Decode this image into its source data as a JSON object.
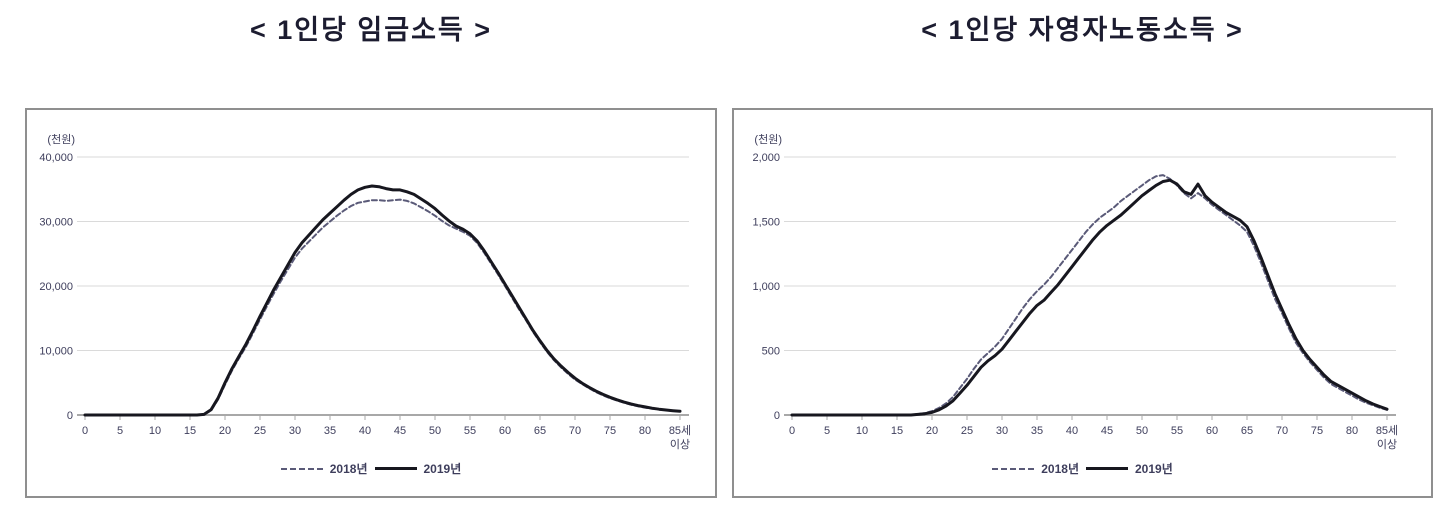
{
  "chart_data": [
    {
      "type": "line",
      "title": "< 1인당 임금소득 >",
      "unit_label": "(천원)",
      "x_tick_labels": [
        "0",
        "5",
        "10",
        "15",
        "20",
        "25",
        "30",
        "35",
        "40",
        "45",
        "50",
        "55",
        "60",
        "65",
        "70",
        "75",
        "80",
        "85세"
      ],
      "x_tick_label_second_line": "이상",
      "x_tick_positions": [
        0,
        5,
        10,
        15,
        20,
        25,
        30,
        35,
        40,
        45,
        50,
        55,
        60,
        65,
        70,
        75,
        80,
        85
      ],
      "x_unit": "age in years, 1-year steps, last point = 85+",
      "ylim": [
        0,
        40000
      ],
      "yticks": [
        0,
        10000,
        20000,
        30000,
        40000
      ],
      "ytick_labels": [
        "0",
        "10,000",
        "20,000",
        "30,000",
        "40,000"
      ],
      "grid": "horizontal",
      "legend_position": "bottom-center",
      "series": [
        {
          "name": "2018년",
          "style": "dashed",
          "color": "#5a5a78",
          "values": [
            0,
            0,
            0,
            0,
            0,
            0,
            0,
            0,
            0,
            0,
            0,
            0,
            0,
            0,
            0,
            0,
            0,
            100,
            700,
            2400,
            4700,
            6900,
            8800,
            10600,
            12700,
            14800,
            16900,
            18900,
            20800,
            22600,
            24400,
            25800,
            26900,
            28000,
            29100,
            30000,
            30900,
            31700,
            32400,
            32900,
            33100,
            33300,
            33300,
            33200,
            33300,
            33400,
            33200,
            32800,
            32200,
            31600,
            30900,
            30100,
            29400,
            28900,
            28400,
            27800,
            26700,
            25200,
            23500,
            21800,
            20000,
            18200,
            16400,
            14700,
            12900,
            11300,
            9800,
            8500,
            7400,
            6400,
            5500,
            4800,
            4150,
            3550,
            3050,
            2600,
            2250,
            1900,
            1600,
            1350,
            1150,
            980,
            850,
            730,
            630,
            550
          ]
        },
        {
          "name": "2019년",
          "style": "solid",
          "color": "#17171f",
          "values": [
            0,
            0,
            0,
            0,
            0,
            0,
            0,
            0,
            0,
            0,
            0,
            0,
            0,
            0,
            0,
            0,
            0,
            100,
            800,
            2600,
            5000,
            7200,
            9100,
            11000,
            13100,
            15300,
            17400,
            19500,
            21400,
            23300,
            25200,
            26700,
            27900,
            29100,
            30300,
            31300,
            32300,
            33300,
            34200,
            34900,
            35300,
            35500,
            35400,
            35100,
            34900,
            34900,
            34600,
            34200,
            33500,
            32800,
            32000,
            31000,
            30100,
            29300,
            28800,
            28100,
            27000,
            25500,
            23800,
            22100,
            20300,
            18500,
            16700,
            14900,
            13100,
            11500,
            10000,
            8700,
            7600,
            6600,
            5700,
            4950,
            4300,
            3700,
            3200,
            2750,
            2350,
            2000,
            1700,
            1450,
            1250,
            1050,
            900,
            780,
            670,
            580
          ]
        }
      ]
    },
    {
      "type": "line",
      "title": "< 1인당 자영자노동소득 >",
      "unit_label": "(천원)",
      "x_tick_labels": [
        "0",
        "5",
        "10",
        "15",
        "20",
        "25",
        "30",
        "35",
        "40",
        "45",
        "50",
        "55",
        "60",
        "65",
        "70",
        "75",
        "80",
        "85세"
      ],
      "x_tick_label_second_line": "이상",
      "x_tick_positions": [
        0,
        5,
        10,
        15,
        20,
        25,
        30,
        35,
        40,
        45,
        50,
        55,
        60,
        65,
        70,
        75,
        80,
        85
      ],
      "x_unit": "age in years, 1-year steps, last point = 85+",
      "ylim": [
        0,
        2000
      ],
      "yticks": [
        0,
        500,
        1000,
        1500,
        2000
      ],
      "ytick_labels": [
        "0",
        "500",
        "1,000",
        "1,500",
        "2,000"
      ],
      "grid": "horizontal",
      "legend_position": "bottom-center",
      "series": [
        {
          "name": "2018년",
          "style": "dashed",
          "color": "#5a5a78",
          "values": [
            0,
            0,
            0,
            0,
            0,
            0,
            0,
            0,
            0,
            0,
            0,
            0,
            0,
            0,
            0,
            0,
            0,
            0,
            8,
            15,
            30,
            55,
            90,
            140,
            210,
            280,
            360,
            430,
            480,
            530,
            590,
            670,
            750,
            830,
            900,
            960,
            1010,
            1070,
            1140,
            1210,
            1280,
            1350,
            1420,
            1480,
            1530,
            1570,
            1610,
            1660,
            1700,
            1740,
            1780,
            1820,
            1850,
            1860,
            1830,
            1780,
            1720,
            1680,
            1720,
            1680,
            1630,
            1590,
            1550,
            1510,
            1470,
            1420,
            1310,
            1180,
            1040,
            900,
            790,
            670,
            560,
            480,
            410,
            350,
            290,
            240,
            210,
            180,
            150,
            120,
            95,
            75,
            55,
            40
          ]
        },
        {
          "name": "2019년",
          "style": "solid",
          "color": "#17171f",
          "values": [
            0,
            0,
            0,
            0,
            0,
            0,
            0,
            0,
            0,
            0,
            0,
            0,
            0,
            0,
            0,
            0,
            0,
            0,
            5,
            10,
            20,
            40,
            70,
            110,
            170,
            230,
            300,
            370,
            420,
            460,
            510,
            580,
            650,
            720,
            790,
            850,
            890,
            950,
            1010,
            1080,
            1150,
            1220,
            1290,
            1360,
            1420,
            1470,
            1510,
            1550,
            1600,
            1650,
            1700,
            1740,
            1780,
            1810,
            1820,
            1790,
            1730,
            1710,
            1790,
            1700,
            1650,
            1610,
            1570,
            1540,
            1510,
            1460,
            1350,
            1220,
            1080,
            940,
            820,
            700,
            590,
            500,
            430,
            370,
            310,
            260,
            230,
            200,
            170,
            140,
            110,
            85,
            65,
            45
          ]
        }
      ]
    }
  ],
  "style_colors": {
    "grid_line": "#dadada",
    "axis_line": "#a8a8a8",
    "tick_label": "#3e3e5c",
    "title_text": "#1c1c30",
    "panel_border": "#8f8f8f"
  }
}
